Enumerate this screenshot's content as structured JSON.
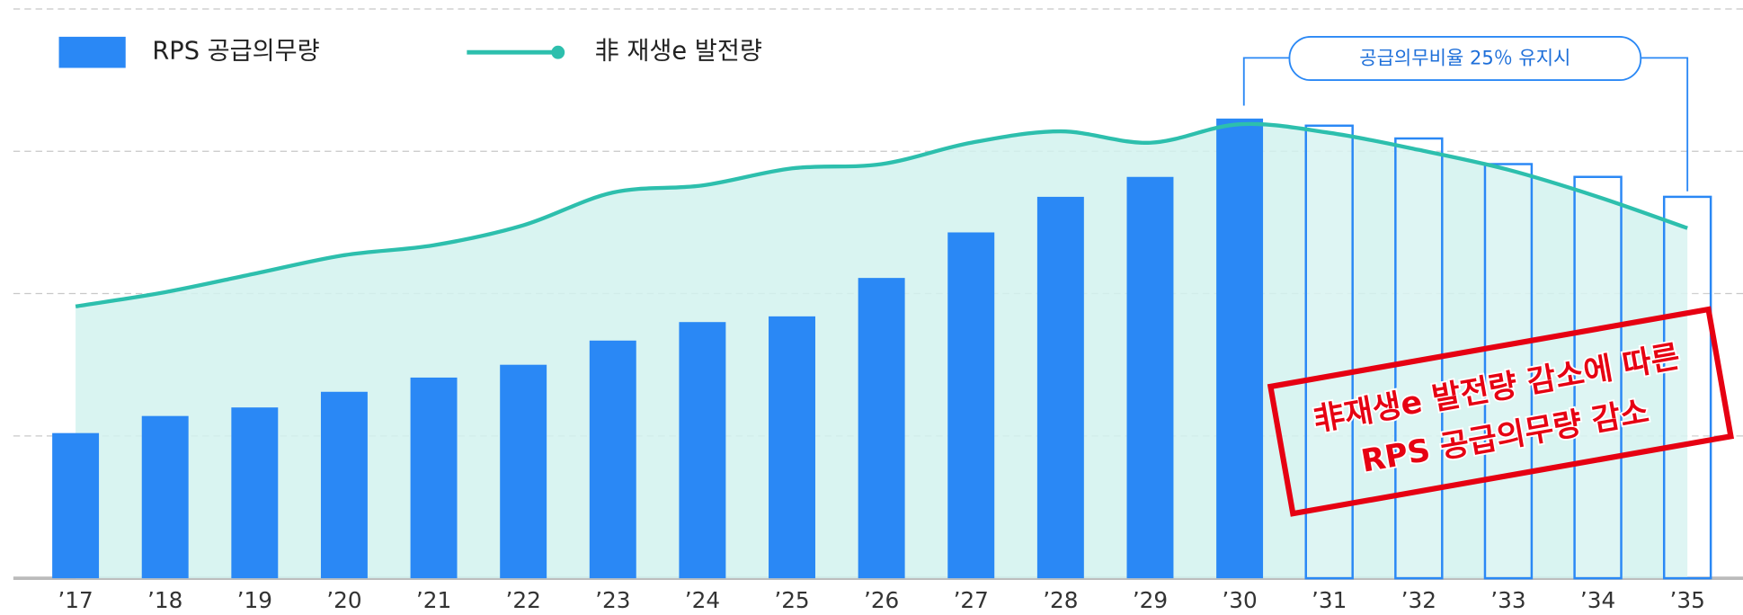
{
  "chart_data": {
    "type": "bar",
    "categories": [
      "’17",
      "’18",
      "’19",
      "’20",
      "’21",
      "’22",
      "’23",
      "’24",
      "’25",
      "’26",
      "’27",
      "’28",
      "’29",
      "’30",
      "’31",
      "’32",
      "’33",
      "’34",
      "’35"
    ],
    "series": [
      {
        "name": "RPS 공급의무량",
        "type": "bar",
        "color": "#2a88f5",
        "values": [
          1.02,
          1.14,
          1.2,
          1.31,
          1.41,
          1.5,
          1.67,
          1.8,
          1.84,
          2.11,
          2.43,
          2.68,
          2.82,
          3.23,
          3.18,
          3.09,
          2.91,
          2.82,
          2.68
        ]
      },
      {
        "name": "非 재생e 발전량",
        "type": "line",
        "color": "#2dbfad",
        "values": [
          1.91,
          2.01,
          2.14,
          2.27,
          2.34,
          2.48,
          2.71,
          2.76,
          2.88,
          2.91,
          3.06,
          3.14,
          3.06,
          3.19,
          3.13,
          3.01,
          2.87,
          2.68,
          2.46
        ]
      }
    ],
    "ylim": [
      0,
      4
    ],
    "yticks": [
      0,
      1,
      2,
      3,
      4
    ],
    "grid": true,
    "annotations": [
      "공급의무비율 25％ 유지시",
      "非재생e 발전량 감소에 따른",
      "RPS 공급의무량 감소"
    ]
  }
}
